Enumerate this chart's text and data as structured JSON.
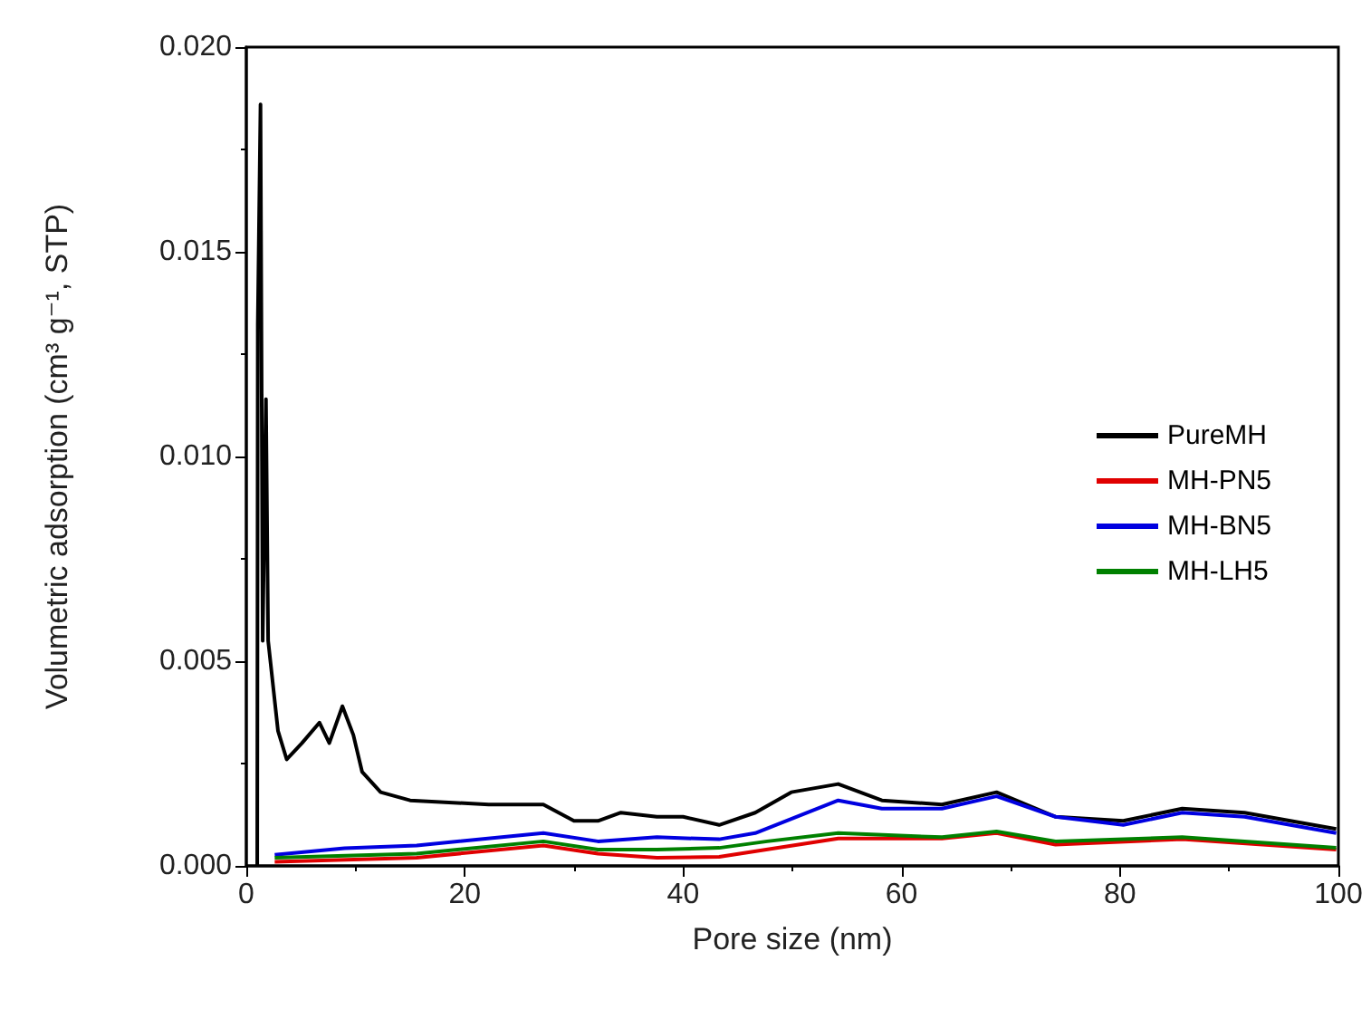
{
  "chart_data": {
    "type": "line",
    "xlabel": "Pore size (nm)",
    "ylabel": "Volumetric adsorption (cm³ g⁻¹, STP)",
    "xlim": [
      0,
      100
    ],
    "xticks": [
      0,
      20,
      40,
      60,
      80,
      100
    ],
    "ylim": [
      0,
      0.02
    ],
    "yticks": [
      {
        "value": 0,
        "label": "0.000"
      },
      {
        "value": 0.005,
        "label": "0.005"
      },
      {
        "value": 0.01,
        "label": "0.010"
      },
      {
        "value": 0.015,
        "label": "0.015"
      },
      {
        "value": 0.02,
        "label": "0.020"
      }
    ],
    "grid": false,
    "legend": "right",
    "marker": "none",
    "line_style": "solid",
    "series": [
      {
        "name": "PureMH",
        "color": "#000000",
        "x": [
          1.0,
          1.05,
          1.3,
          1.5,
          1.8,
          2.0,
          2.9,
          3.7,
          5.1,
          6.7,
          7.6,
          8.8,
          9.8,
          10.6,
          12.3,
          15,
          22.2,
          27.2,
          30,
          32.2,
          34.3,
          37.6,
          40,
          43.3,
          46.6,
          49.9,
          54.2,
          58.2,
          63.7,
          68.7,
          74.1,
          80.3,
          85.7,
          91.4,
          99.8
        ],
        "values": [
          0,
          0.0132,
          0.0186,
          0.0055,
          0.0114,
          0.0055,
          0.0033,
          0.0026,
          0.003,
          0.0035,
          0.003,
          0.0039,
          0.0032,
          0.0023,
          0.0018,
          0.0016,
          0.0015,
          0.0015,
          0.0011,
          0.0011,
          0.0013,
          0.0012,
          0.0012,
          0.001,
          0.0013,
          0.0018,
          0.002,
          0.0016,
          0.0015,
          0.0018,
          0.0012,
          0.0011,
          0.0014,
          0.0013,
          0.0009
        ]
      },
      {
        "name": "MH-PN5",
        "color": "#e00000",
        "x": [
          2.6,
          15.6,
          27.2,
          32.2,
          37.6,
          43.3,
          54.2,
          63.7,
          68.7,
          74.1,
          85.7,
          99.8
        ],
        "values": [
          0.0001,
          0.0002,
          0.0005,
          0.0003,
          0.0002,
          0.00022,
          0.00067,
          0.00067,
          0.0008,
          0.00052,
          0.00065,
          0.0004
        ]
      },
      {
        "name": "MH-BN5",
        "color": "#0000e0",
        "x": [
          2.6,
          9,
          15.6,
          27.2,
          32.2,
          37.6,
          43.3,
          46.6,
          54.2,
          58.2,
          63.7,
          68.7,
          74.1,
          80.3,
          85.7,
          91.4,
          99.8
        ],
        "values": [
          0.00027,
          0.00043,
          0.0005,
          0.0008,
          0.0006,
          0.0007,
          0.00065,
          0.0008,
          0.0016,
          0.0014,
          0.0014,
          0.0017,
          0.0012,
          0.001,
          0.0013,
          0.0012,
          0.0008
        ]
      },
      {
        "name": "MH-LH5",
        "color": "#008000",
        "x": [
          2.6,
          15.6,
          27.2,
          32.2,
          37.6,
          43.3,
          47.7,
          54.2,
          63.7,
          68.7,
          74.1,
          85.7,
          99.8
        ],
        "values": [
          0.0002,
          0.0003,
          0.0006,
          0.0004,
          0.0004,
          0.00044,
          0.0006,
          0.0008,
          0.0007,
          0.00084,
          0.0006,
          0.0007,
          0.00044
        ]
      }
    ]
  }
}
